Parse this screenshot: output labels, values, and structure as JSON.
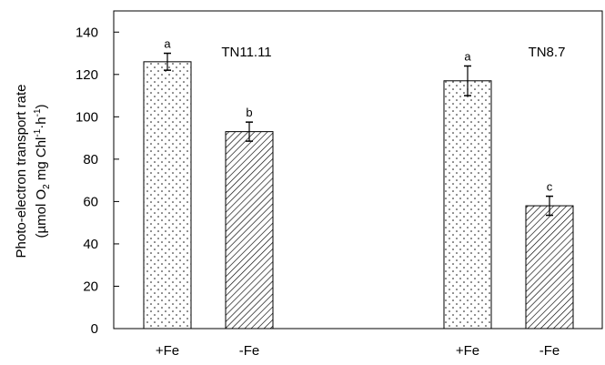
{
  "chart_data": {
    "type": "bar",
    "ylabel_line1": "Photo-electron transport rate",
    "ylabel_line2": {
      "open": "(µmol O",
      "sub": "2",
      "mid": " mg Chl",
      "sup1": "-1",
      "dot": "·h",
      "sup2": "-1",
      "close": ")"
    },
    "ylim": [
      0,
      150
    ],
    "yticks": [
      0,
      20,
      40,
      60,
      80,
      100,
      120,
      140
    ],
    "grid": false,
    "groups": [
      {
        "name": "TN11.11",
        "bars": [
          {
            "label": "+Fe",
            "value": 126,
            "error": 4,
            "letter": "a",
            "pattern": "dots"
          },
          {
            "label": "-Fe",
            "value": 93,
            "error": 4.5,
            "letter": "b",
            "pattern": "hatch"
          }
        ]
      },
      {
        "name": "TN8.7",
        "bars": [
          {
            "label": "+Fe",
            "value": 117,
            "error": 7,
            "letter": "a",
            "pattern": "dots"
          },
          {
            "label": "-Fe",
            "value": 58,
            "error": 4.5,
            "letter": "c",
            "pattern": "hatch"
          }
        ]
      }
    ]
  }
}
